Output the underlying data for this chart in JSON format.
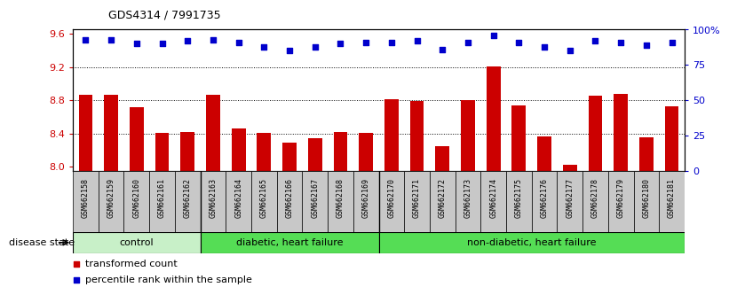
{
  "title": "GDS4314 / 7991735",
  "samples": [
    "GSM662158",
    "GSM662159",
    "GSM662160",
    "GSM662161",
    "GSM662162",
    "GSM662163",
    "GSM662164",
    "GSM662165",
    "GSM662166",
    "GSM662167",
    "GSM662168",
    "GSM662169",
    "GSM662170",
    "GSM662171",
    "GSM662172",
    "GSM662173",
    "GSM662174",
    "GSM662175",
    "GSM662176",
    "GSM662177",
    "GSM662178",
    "GSM662179",
    "GSM662180",
    "GSM662181"
  ],
  "transformed_count": [
    8.86,
    8.86,
    8.72,
    8.41,
    8.42,
    8.86,
    8.46,
    8.41,
    8.29,
    8.34,
    8.42,
    8.41,
    8.81,
    8.79,
    8.25,
    8.8,
    9.21,
    8.74,
    8.36,
    8.02,
    8.85,
    8.88,
    8.35,
    8.73
  ],
  "percentile_rank": [
    93,
    93,
    90,
    90,
    92,
    93,
    91,
    88,
    85,
    88,
    90,
    91,
    91,
    92,
    86,
    91,
    96,
    91,
    88,
    85,
    92,
    91,
    89,
    91
  ],
  "ylim_left": [
    7.95,
    9.65
  ],
  "ylim_right": [
    0,
    100
  ],
  "yticks_left": [
    8.0,
    8.4,
    8.8,
    9.2,
    9.6
  ],
  "yticks_right": [
    0,
    25,
    50,
    75,
    100
  ],
  "ytick_labels_right": [
    "0",
    "25",
    "50",
    "75",
    "100%"
  ],
  "bar_color": "#cc0000",
  "dot_color": "#0000cc",
  "group_boundaries": [
    5,
    12
  ],
  "groups_info": [
    [
      0,
      5,
      "control",
      "#b0f0b0"
    ],
    [
      5,
      12,
      "diabetic, heart failure",
      "#55dd55"
    ],
    [
      12,
      24,
      "non-diabetic, heart failure",
      "#55dd55"
    ]
  ],
  "legend_bar_label": "transformed count",
  "legend_dot_label": "percentile rank within the sample",
  "disease_state_label": "disease state",
  "tick_bg_color": "#c8c8c8",
  "plot_bg": "#ffffff",
  "gridline_color": "#000000",
  "border_color": "#000000"
}
